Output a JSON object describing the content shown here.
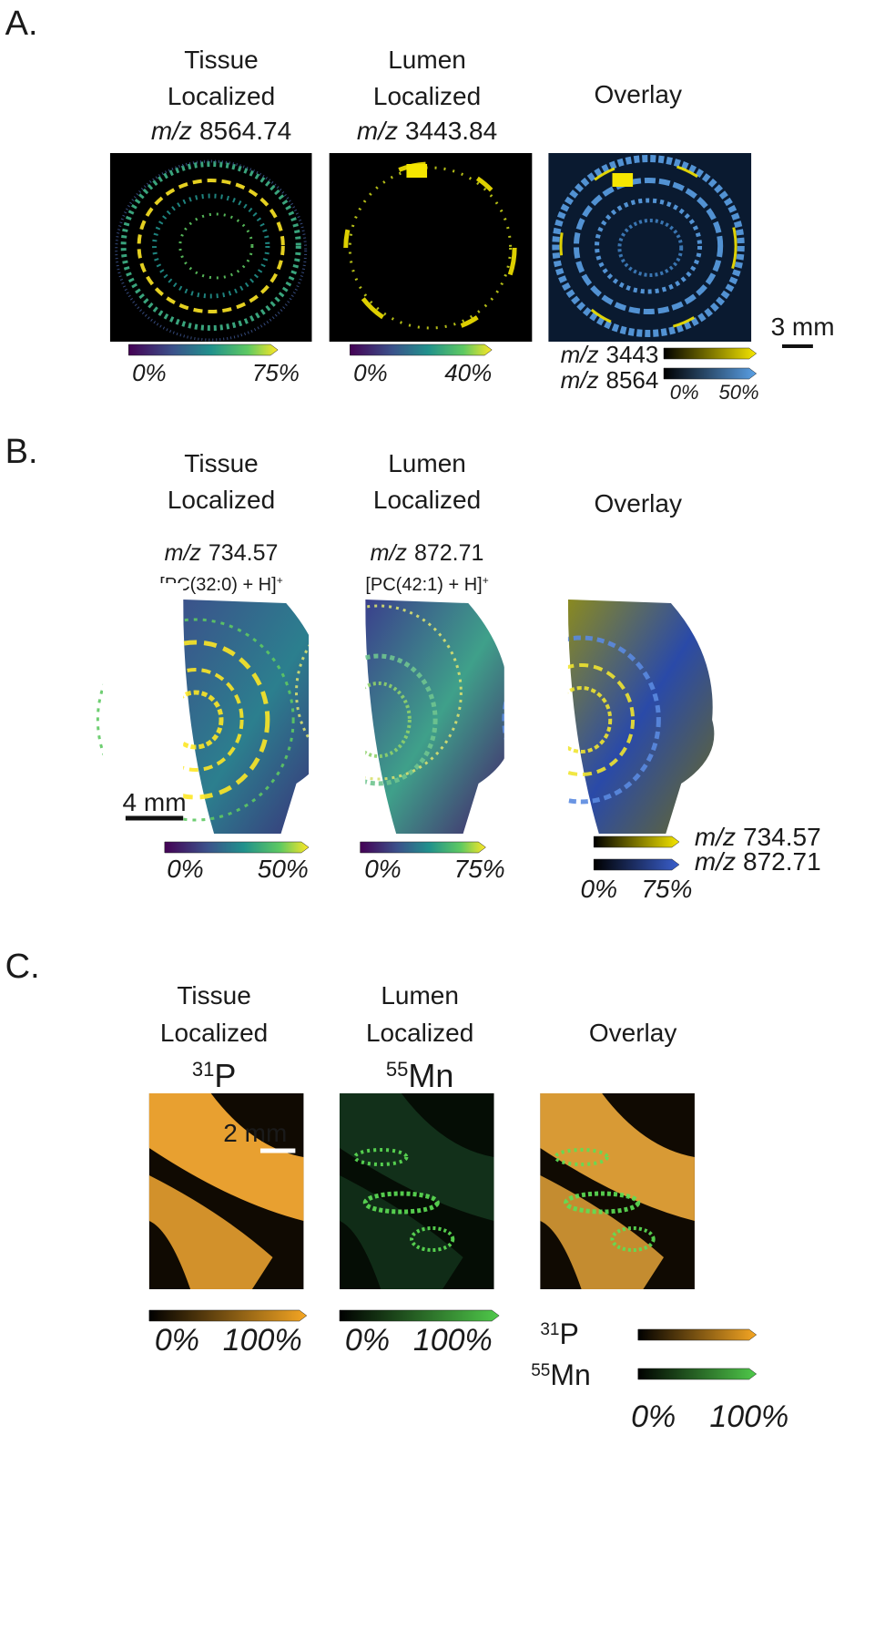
{
  "panels": [
    {
      "label": "A.",
      "columns": [
        {
          "title": [
            "Tissue",
            "Localized"
          ],
          "mz_italic": "m/z",
          "mz_value": "8564.74",
          "scale_min": "0%",
          "scale_max": "75%"
        },
        {
          "title": [
            "Lumen",
            "Localized"
          ],
          "mz_italic": "m/z",
          "mz_value": "3443.84",
          "scale_min": "0%",
          "scale_max": "40%"
        },
        {
          "title": [
            "Overlay"
          ]
        }
      ],
      "scale_bar": "3 mm",
      "overlay_legend": {
        "items": [
          {
            "italic": "m/z",
            "value": "3443"
          },
          {
            "italic": "m/z",
            "value": "8564"
          }
        ],
        "scale_min": "0%",
        "scale_max": "50%"
      }
    },
    {
      "label": "B.",
      "columns": [
        {
          "title": [
            "Tissue",
            "Localized"
          ],
          "mz_italic": "m/z",
          "mz_value": "734.57",
          "ion": "[PC(32:0) + H]",
          "ion_sup": "+",
          "scale_min": "0%",
          "scale_max": "50%"
        },
        {
          "title": [
            "Lumen",
            "Localized"
          ],
          "mz_italic": "m/z",
          "mz_value": "872.71",
          "ion": "[PC(42:1) + H]",
          "ion_sup": "+",
          "scale_min": "0%",
          "scale_max": "75%"
        },
        {
          "title": [
            "Overlay"
          ]
        }
      ],
      "scale_bar": "4 mm",
      "overlay_legend": {
        "items": [
          {
            "italic": "m/z",
            "value": "734.57"
          },
          {
            "italic": "m/z",
            "value": "872.71"
          }
        ],
        "scale_min": "0%",
        "scale_max": "75%"
      }
    },
    {
      "label": "C.",
      "columns": [
        {
          "title": [
            "Tissue",
            "Localized"
          ],
          "isotope": "31",
          "element": "P",
          "scale_min": "0%",
          "scale_max": "100%"
        },
        {
          "title": [
            "Lumen",
            "Localized"
          ],
          "isotope": "55",
          "element": "Mn",
          "scale_min": "0%",
          "scale_max": "100%"
        },
        {
          "title": [
            "Overlay"
          ]
        }
      ],
      "scale_bar": "2 mm",
      "overlay_legend": {
        "items": [
          {
            "isotope": "31",
            "element": "P"
          },
          {
            "isotope": "55",
            "element": "Mn"
          }
        ],
        "scale_min": "0%",
        "scale_max": "100%"
      }
    }
  ]
}
